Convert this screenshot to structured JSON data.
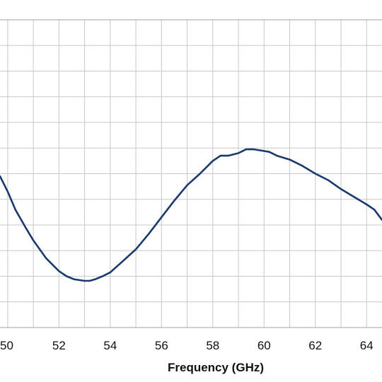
{
  "chart_data": {
    "type": "line",
    "xlabel": "Frequency  (GHz)",
    "ylabel": "",
    "title": "",
    "xlim": [
      49.7,
      64.6
    ],
    "ylim": [
      0,
      12
    ],
    "x_ticks": [
      50,
      52,
      54,
      56,
      58,
      60,
      62,
      64
    ],
    "y_gridlines": [
      1,
      2,
      3,
      4,
      5,
      6,
      7,
      8,
      9,
      10,
      11
    ],
    "grid": true,
    "legend": "none",
    "line_color": "#1a3a6e",
    "series": [
      {
        "x": [
          49.7,
          50.0,
          50.3,
          50.7,
          51.0,
          51.5,
          52.0,
          52.3,
          52.6,
          53.0,
          53.2,
          53.4,
          53.7,
          54.0,
          54.5,
          55.0,
          55.5,
          56.0,
          56.5,
          57.0,
          57.5,
          58.0,
          58.3,
          58.6,
          59.0,
          59.3,
          59.6,
          59.9,
          60.2,
          60.5,
          61.0,
          61.5,
          62.0,
          62.5,
          63.0,
          63.5,
          64.0,
          64.3,
          64.6
        ],
        "y": [
          5.9,
          5.3,
          4.6,
          3.9,
          3.4,
          2.7,
          2.2,
          2.0,
          1.88,
          1.82,
          1.82,
          1.88,
          2.0,
          2.15,
          2.6,
          3.05,
          3.65,
          4.3,
          4.95,
          5.55,
          6.0,
          6.5,
          6.7,
          6.7,
          6.8,
          6.95,
          6.95,
          6.9,
          6.85,
          6.7,
          6.55,
          6.3,
          6.0,
          5.75,
          5.4,
          5.1,
          4.8,
          4.6,
          4.2
        ]
      }
    ]
  }
}
